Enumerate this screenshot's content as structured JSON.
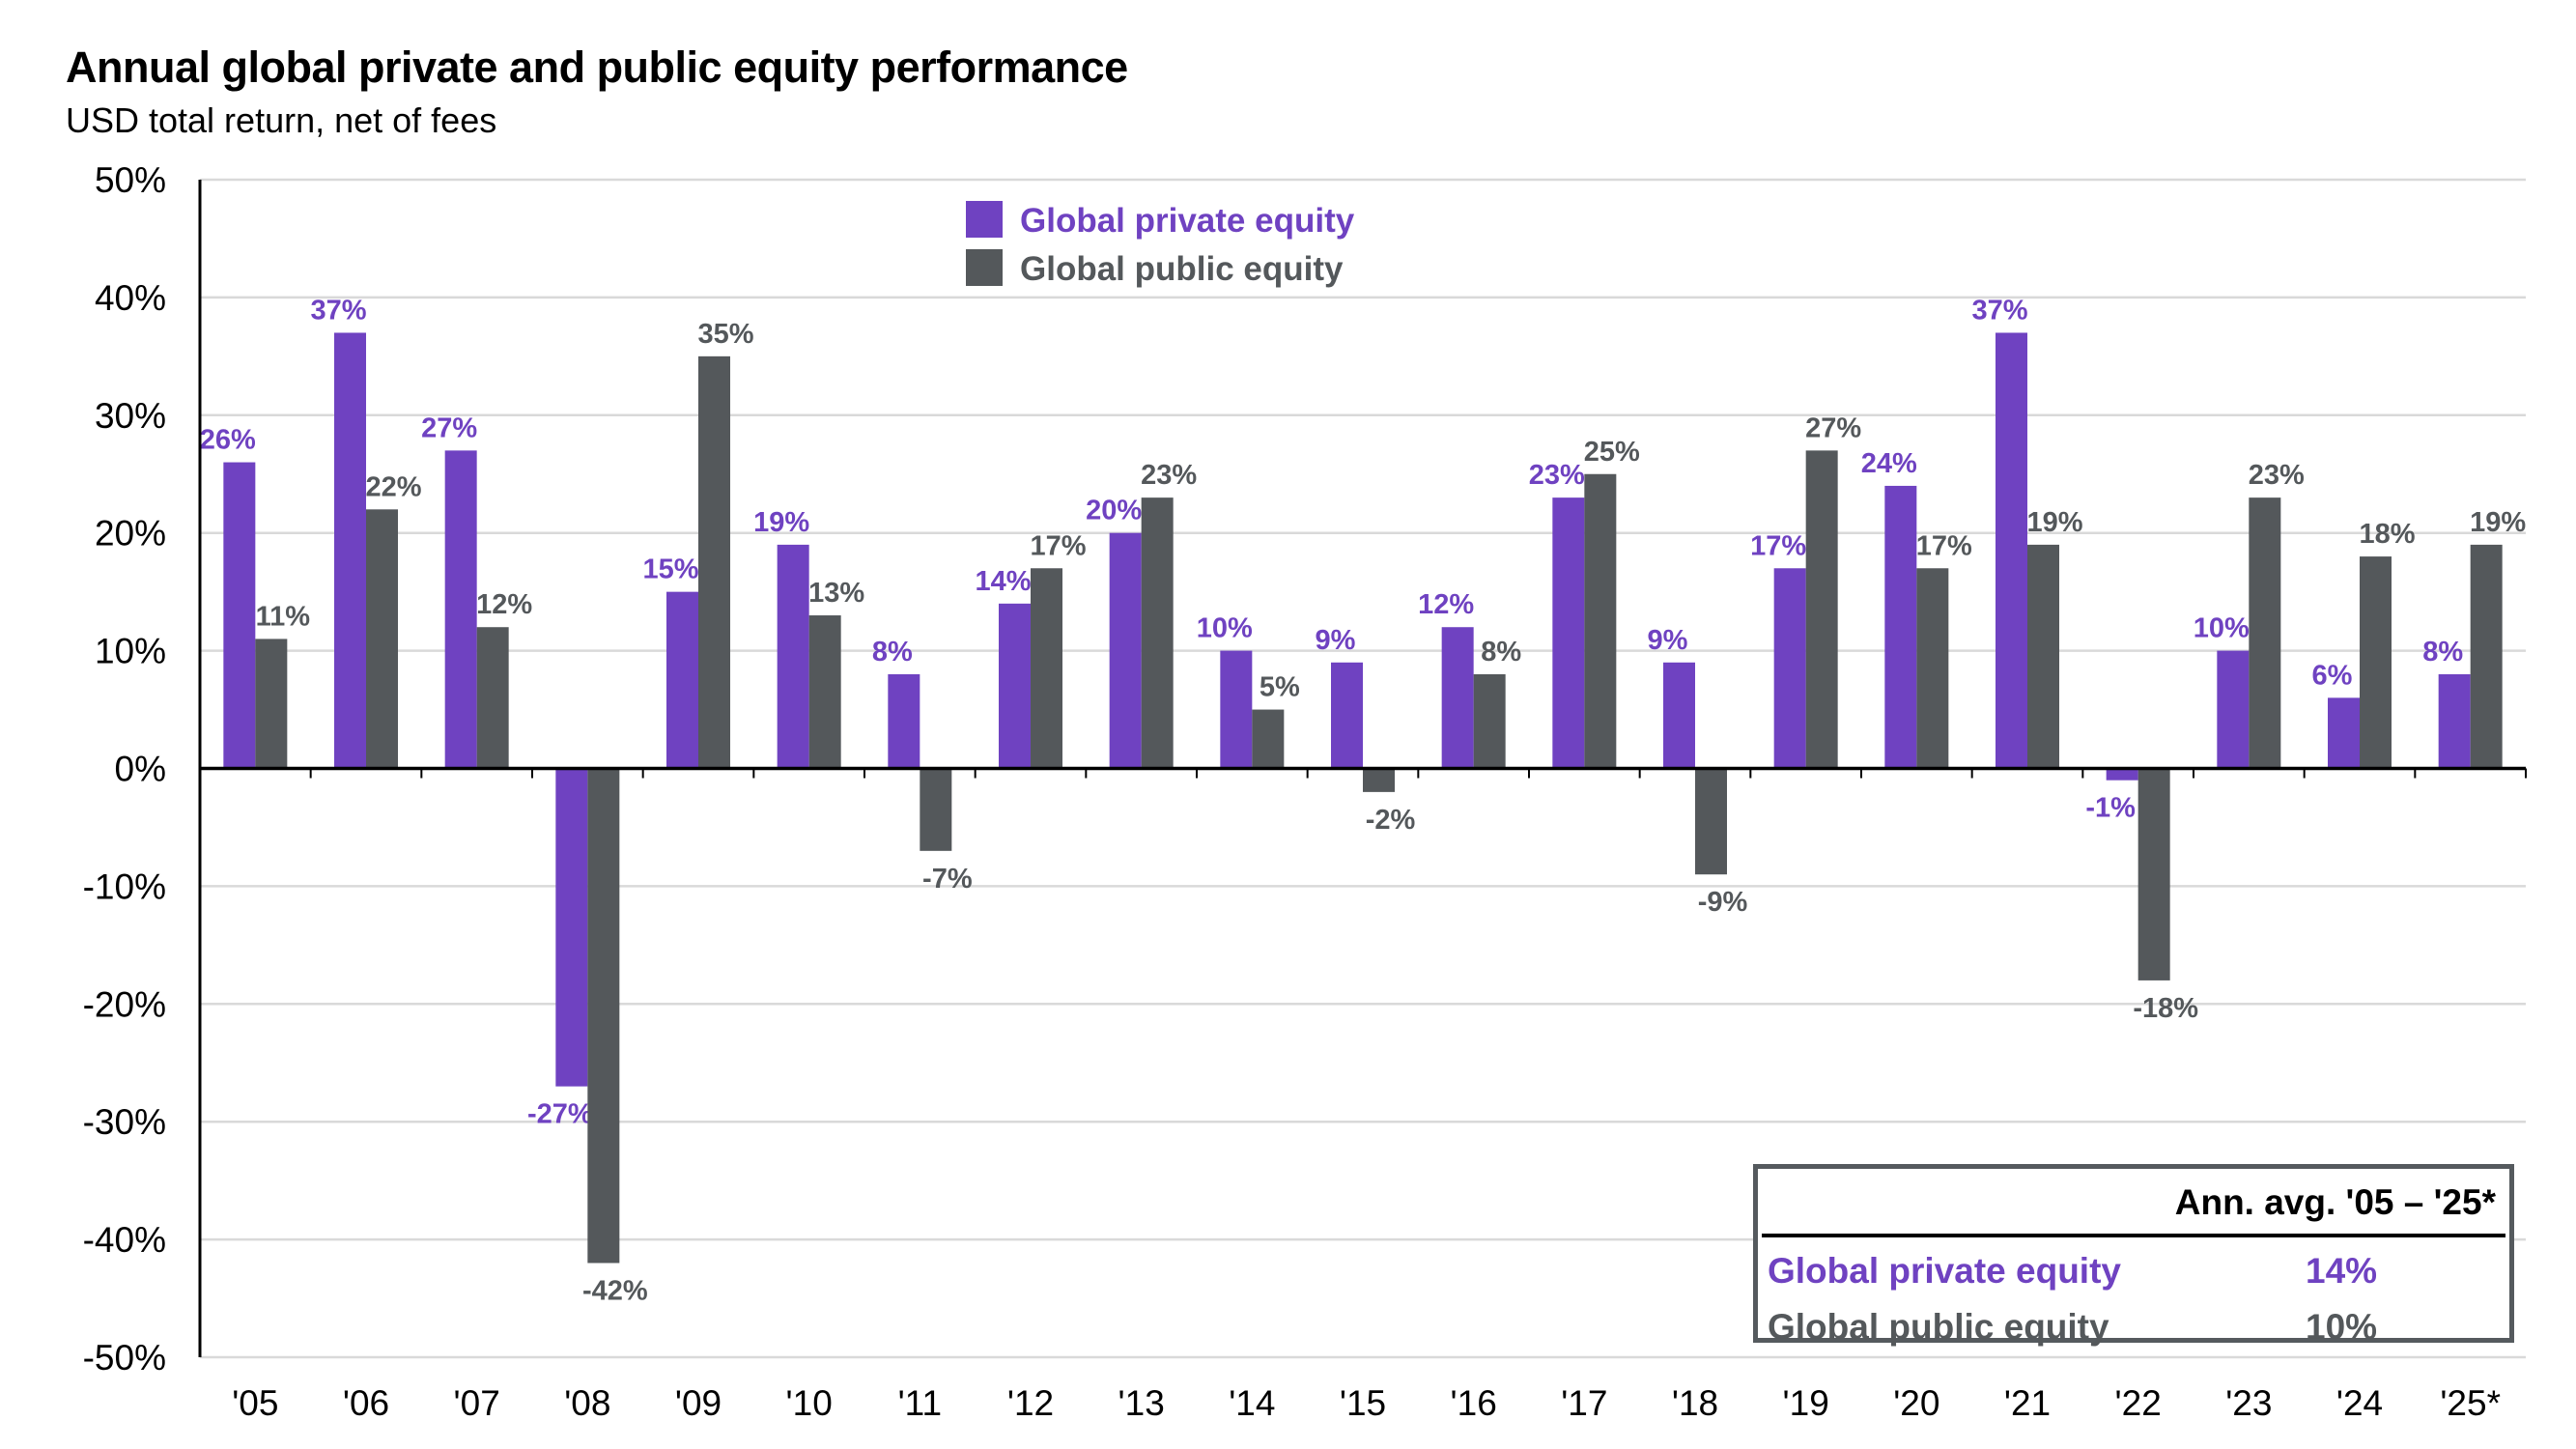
{
  "colors": {
    "private": "#6f42c1",
    "public": "#54585b",
    "grid": "#d9d9d9"
  },
  "chart_data": {
    "type": "bar",
    "title": "Annual global private and public equity performance",
    "subtitle": "USD total return, net of fees",
    "categories": [
      "'05",
      "'06",
      "'07",
      "'08",
      "'09",
      "'10",
      "'11",
      "'12",
      "'13",
      "'14",
      "'15",
      "'16",
      "'17",
      "'18",
      "'19",
      "'20",
      "'21",
      "'22",
      "'23",
      "'24",
      "'25*"
    ],
    "series": [
      {
        "name": "Global private equity",
        "values": [
          26,
          37,
          27,
          -27,
          15,
          19,
          8,
          14,
          20,
          10,
          9,
          12,
          23,
          9,
          17,
          24,
          37,
          -1,
          10,
          6,
          8
        ],
        "labels": [
          "26%",
          "37%",
          "27%",
          "-27%",
          "15%",
          "19%",
          "8%",
          "14%",
          "20%",
          "10%",
          "9%",
          "12%",
          "23%",
          "9%",
          "17%",
          "24%",
          "37%",
          "-1%",
          "10%",
          "6%",
          "8%"
        ]
      },
      {
        "name": "Global public equity",
        "values": [
          11,
          22,
          12,
          -42,
          35,
          13,
          -7,
          17,
          23,
          5,
          -2,
          8,
          25,
          -9,
          27,
          17,
          19,
          -18,
          23,
          18,
          19
        ],
        "labels": [
          "11%",
          "22%",
          "12%",
          "-42%",
          "35%",
          "13%",
          "-7%",
          "17%",
          "23%",
          "5%",
          "-2%",
          "8%",
          "25%",
          "-9%",
          "27%",
          "17%",
          "19%",
          "-18%",
          "23%",
          "18%",
          "19%"
        ]
      }
    ],
    "ylim": [
      -50,
      50
    ],
    "yticks": [
      50,
      40,
      30,
      20,
      10,
      0,
      -10,
      -20,
      -30,
      -40,
      -50
    ],
    "ytick_labels": [
      "50%",
      "40%",
      "30%",
      "20%",
      "10%",
      "0%",
      "-10%",
      "-20%",
      "-30%",
      "-40%",
      "-50%"
    ],
    "grid": true,
    "legend": "top-center"
  },
  "summary_table": {
    "header": "Ann. avg. '05 – '25*",
    "rows": [
      {
        "label": "Global private equity",
        "value": "14%"
      },
      {
        "label": "Global public equity",
        "value": "10%"
      }
    ]
  }
}
